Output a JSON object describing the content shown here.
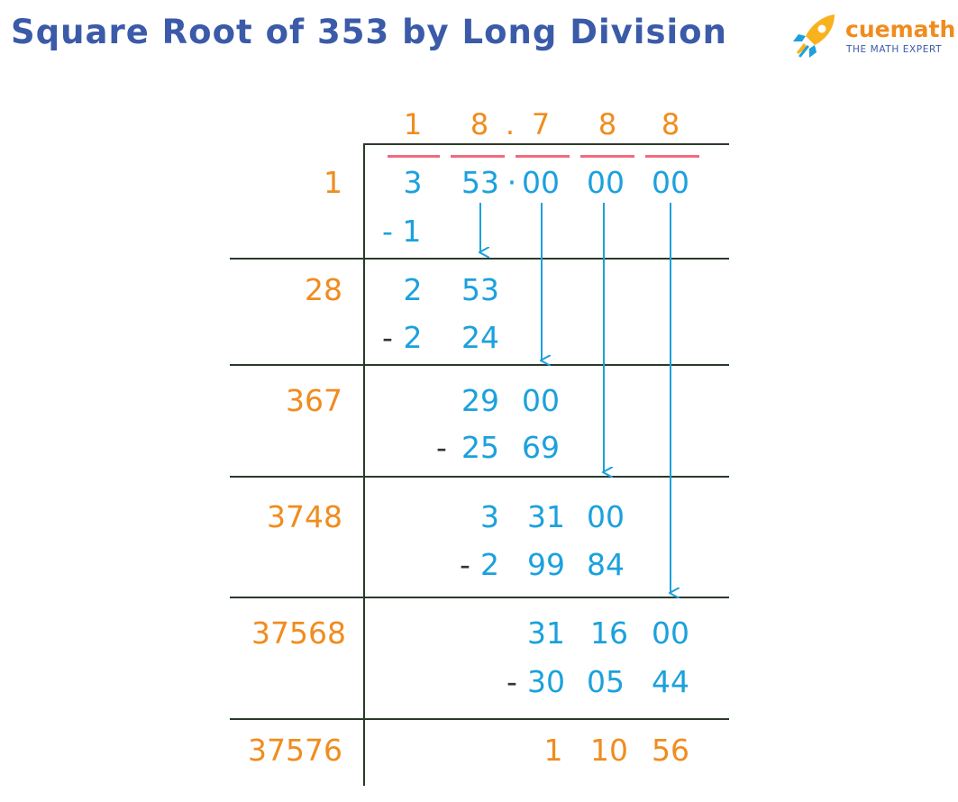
{
  "title": "Square Root of 353 by Long Division",
  "logo": {
    "word": "cuemath",
    "tagline": "THE MATH EXPERT",
    "icon": "rocket-icon"
  },
  "colors": {
    "title": "#3b5ba9",
    "divisor": "#f08c1e",
    "digit": "#1ba1dd",
    "line": "#2a3a2a",
    "pair_bar": "#f06b7e",
    "minus": "#333333",
    "arrow": "#1ba1dd"
  },
  "quotient": {
    "d1": "1",
    "d2": "8",
    "point": ".",
    "d3": "7",
    "d4": "8",
    "d5": "8"
  },
  "dividend": {
    "p1": "3",
    "p2": "53",
    "point": "·",
    "p3": "00",
    "p4": "00",
    "p5": "00"
  },
  "divisors": [
    "1",
    "28",
    "367",
    "3748",
    "37568",
    "37576"
  ],
  "steps": [
    {
      "subtract": [
        "- 1"
      ]
    },
    {
      "remainder": [
        "2",
        "53"
      ],
      "subtract": [
        "-",
        "2",
        "24"
      ]
    },
    {
      "remainder": [
        "29",
        "00"
      ],
      "subtract": [
        "-",
        "25",
        "69"
      ]
    },
    {
      "remainder": [
        "3",
        "31",
        "00"
      ],
      "subtract": [
        "-",
        "2",
        "99",
        "84"
      ]
    },
    {
      "remainder": [
        "31",
        "16",
        "00"
      ],
      "subtract": [
        "-",
        "30",
        "05",
        "44"
      ]
    },
    {
      "remainder": [
        "1",
        "10",
        "56"
      ]
    }
  ]
}
